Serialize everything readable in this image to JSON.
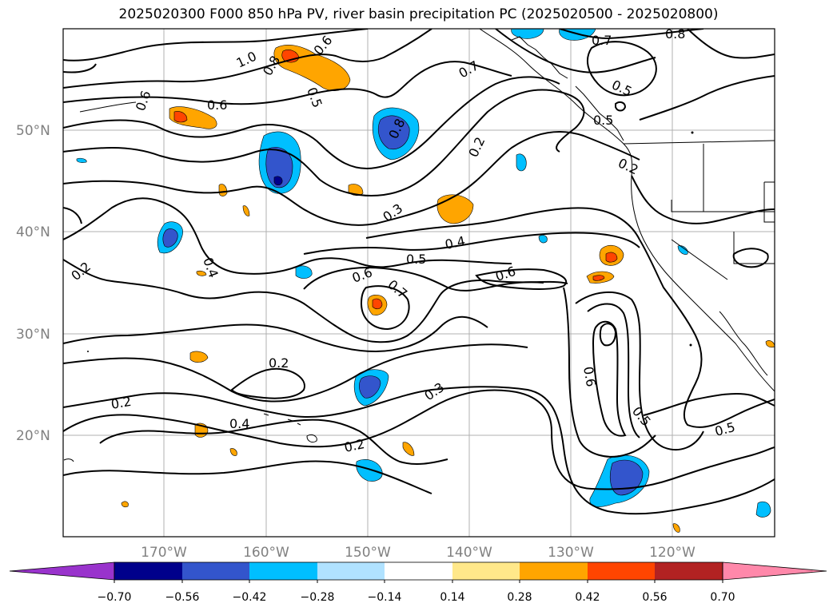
{
  "title": "2025020300 F000 850 hPa PV, river basin precipitation PC (2025020500 - 2025020800)",
  "lat_labels": [
    "50°N",
    "40°N",
    "30°N",
    "20°N"
  ],
  "lon_labels": [
    "170°W",
    "160°W",
    "150°W",
    "140°W",
    "130°W",
    "120°W"
  ],
  "contour_labels": [
    "1.0",
    "0.8",
    "0.6",
    "0.6",
    "0.6",
    "0.5",
    "0.8",
    "0.7",
    "0.2",
    "0.7",
    "0.8",
    "0.5",
    "0.5",
    "0.2",
    "0.3",
    "0.4",
    "0.5",
    "0.2",
    "0.4",
    "0.6",
    "0.7",
    "0.6",
    "0.2",
    "0.2",
    "0.4",
    "0.3",
    "0.2",
    "0.6",
    "0.5",
    "0.5"
  ],
  "colorbar": {
    "ticks": [
      "−0.70",
      "−0.56",
      "−0.42",
      "−0.28",
      "−0.14",
      "0.14",
      "0.28",
      "0.42",
      "0.56",
      "0.70"
    ],
    "colors": [
      "#9933cc",
      "#00008b",
      "#3355cc",
      "#00bfff",
      "#b0e2ff",
      "#ffffff",
      "#ffe88a",
      "#ffa500",
      "#ff4500",
      "#b22222",
      "#ff88aa"
    ]
  },
  "colors": {
    "neg_strong": "#3355cc",
    "neg_mid": "#00bfff",
    "neg_weak": "#b0e2ff",
    "pos_weak": "#ffe88a",
    "pos_mid": "#ffa500",
    "pos_strong": "#ff4500"
  }
}
